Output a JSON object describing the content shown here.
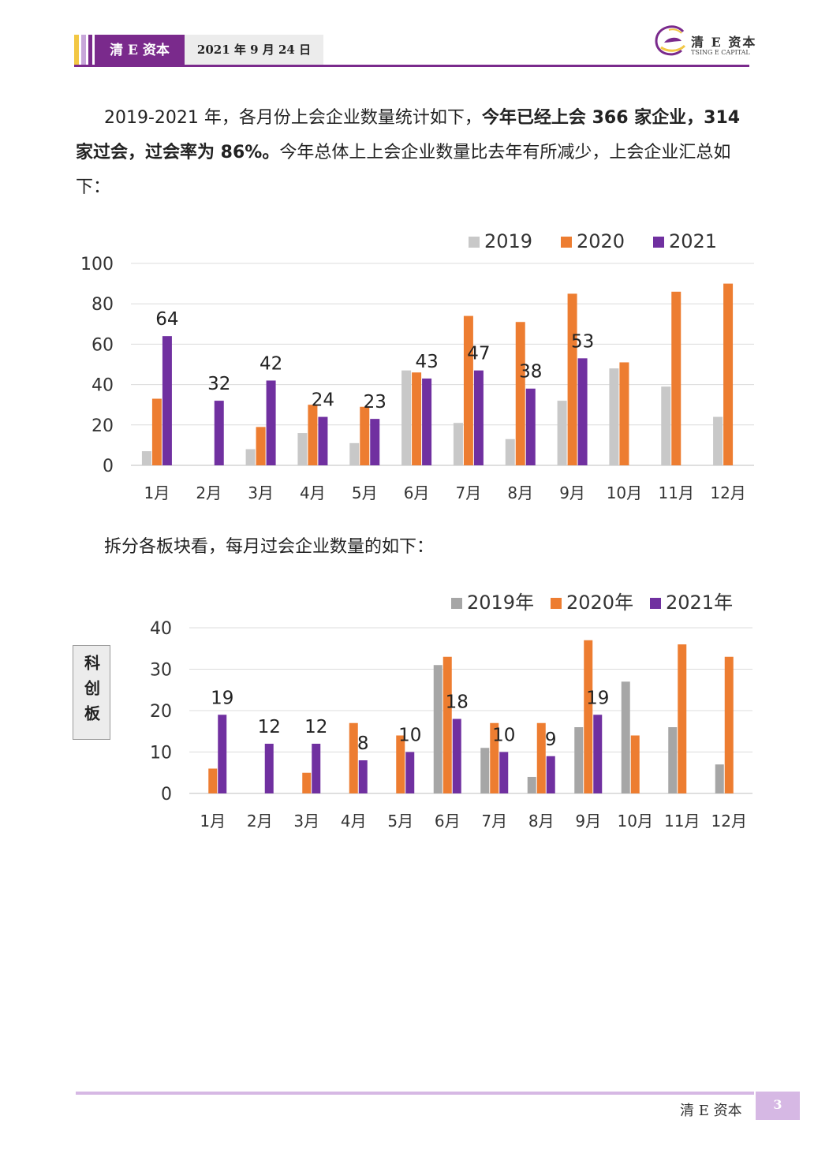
{
  "header": {
    "brand": "清 E 资本",
    "date": "2021 年 9 月 24 日",
    "logo_cn": "清 E 资本",
    "logo_en": "TSING E CAPITAL"
  },
  "paragraph1": {
    "seg1": "2019-2021 年，各月份上会企业数量统计如下，",
    "seg2_bold": "今年已经上会 366 家企业，314 家过会，过会率为 86%。",
    "seg3": "今年总体上上会企业数量比去年有所减少，上会企业汇总如下："
  },
  "paragraph2": "拆分各板块看，每月过会企业数量的如下：",
  "side_label": "科创板",
  "footer": {
    "brand": "清 E 资本",
    "page": "3"
  },
  "colors": {
    "c2019": "#c8c8c8",
    "c2019b": "#a6a6a6",
    "c2020": "#ed7d31",
    "c2021": "#7030a0"
  },
  "chart_data": [
    {
      "type": "bar",
      "categories": [
        "1月",
        "2月",
        "3月",
        "4月",
        "5月",
        "6月",
        "7月",
        "8月",
        "9月",
        "10月",
        "11月",
        "12月"
      ],
      "series": [
        {
          "name": "2019",
          "values": [
            7,
            0,
            8,
            16,
            11,
            47,
            21,
            13,
            32,
            48,
            39,
            24
          ]
        },
        {
          "name": "2020",
          "values": [
            33,
            0,
            19,
            30,
            29,
            46,
            74,
            71,
            85,
            51,
            86,
            90
          ]
        },
        {
          "name": "2021",
          "values": [
            64,
            32,
            42,
            24,
            23,
            43,
            47,
            38,
            53,
            null,
            null,
            null
          ]
        }
      ],
      "data_labels_series": "2021",
      "ylim": [
        0,
        100
      ],
      "yticks": [
        0,
        20,
        40,
        60,
        80,
        100
      ],
      "grid": true,
      "legend": "top-right"
    },
    {
      "type": "bar",
      "categories": [
        "1月",
        "2月",
        "3月",
        "4月",
        "5月",
        "6月",
        "7月",
        "8月",
        "9月",
        "10月",
        "11月",
        "12月"
      ],
      "series": [
        {
          "name": "2019年",
          "values": [
            0,
            0,
            0,
            0,
            0,
            31,
            11,
            4,
            16,
            27,
            16,
            7
          ]
        },
        {
          "name": "2020年",
          "values": [
            6,
            0,
            5,
            17,
            14,
            33,
            17,
            17,
            37,
            14,
            36,
            33
          ]
        },
        {
          "name": "2021年",
          "values": [
            19,
            12,
            12,
            8,
            10,
            18,
            10,
            9,
            19,
            null,
            null,
            null
          ]
        }
      ],
      "data_labels_series": "2021年",
      "ylim": [
        0,
        40
      ],
      "yticks": [
        0,
        10,
        20,
        30,
        40
      ],
      "grid": true,
      "legend": "top-right"
    }
  ]
}
